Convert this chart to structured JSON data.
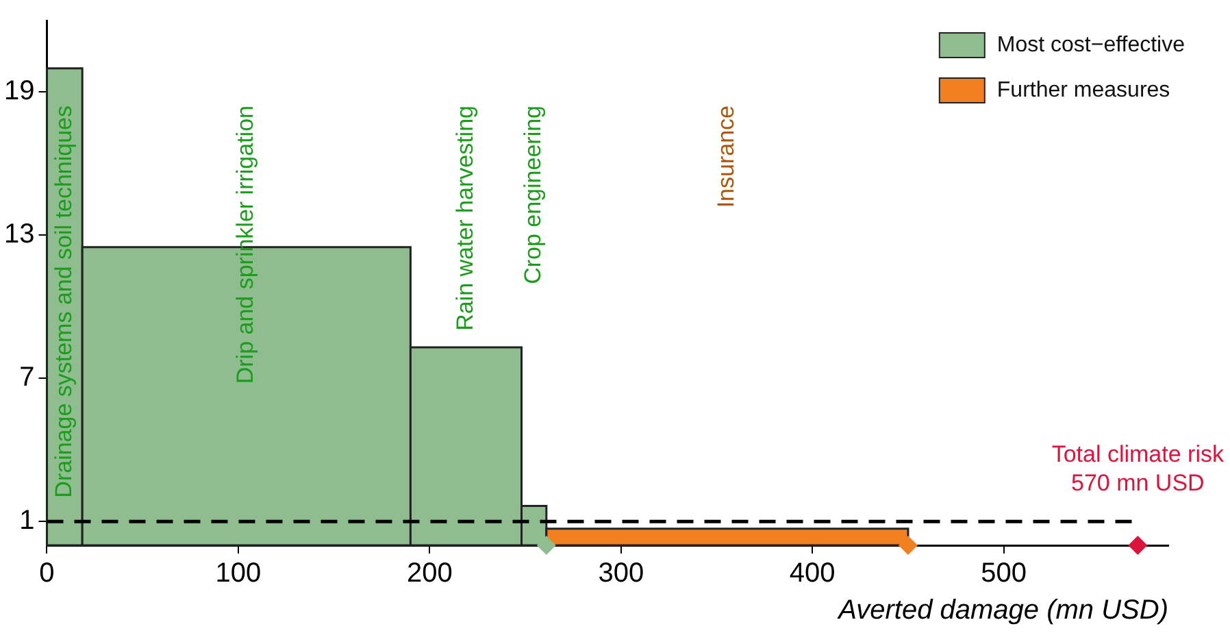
{
  "chart_data": {
    "type": "histogram",
    "bins": [
      0,
      18.5,
      190,
      248,
      261,
      450
    ],
    "series": [
      {
        "name": "Most cost−effective",
        "color": "#8fbd8f",
        "values": [
          20,
          12.5,
          8.3,
          1.65,
          null
        ]
      },
      {
        "name": "Further measures",
        "color": "#f08020",
        "values": [
          null,
          null,
          null,
          null,
          0.7
        ]
      },
      {
        "type": "scatter",
        "x": [
          261,
          450,
          570
        ],
        "values": [
          0,
          0,
          0
        ],
        "colors": [
          "#8fbd8f",
          "#f08020",
          "#dc143c"
        ],
        "marker": "diamond"
      }
    ],
    "xlabel": "Averted damage (mn USD)",
    "xlim": [
      0,
      586
    ],
    "xticks": [
      0,
      100,
      200,
      300,
      400,
      500
    ],
    "ylim": [
      0,
      22
    ],
    "yticks": [
      1,
      7,
      13,
      19
    ],
    "ref_lines": [
      {
        "axis": "y",
        "value": 1,
        "color": "#000000",
        "line_style": "dashed"
      }
    ],
    "annotations": [
      "Drainage systems and soil techniques",
      "Drip and sprinkler irrigation",
      "Rain water harvesting",
      "Crop engineering",
      "Insurance",
      "Total climate risk\n570 mn USD"
    ],
    "legend": "top right",
    "grid": false
  }
}
